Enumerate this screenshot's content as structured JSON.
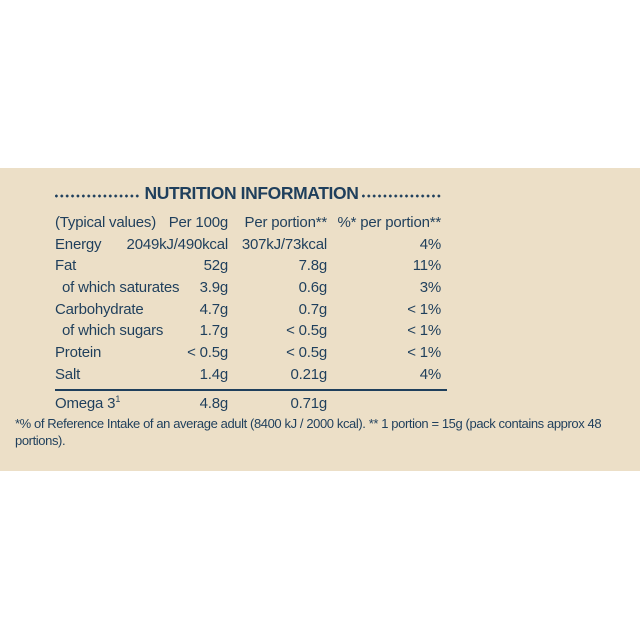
{
  "colors": {
    "page_bg": "#ffffff",
    "label_bg": "#ecdfc7",
    "ink": "#1f3f5c"
  },
  "label": {
    "title": "NUTRITION INFORMATION",
    "columns": {
      "c1": "(Typical values)",
      "c2": "Per 100g",
      "c3": "Per portion**",
      "c4": "%* per portion**"
    },
    "rows": [
      {
        "name": "Energy",
        "per_100g": "2049kJ/490kcal",
        "per_portion": "307kJ/73kcal",
        "pct_per_portion": "4%"
      },
      {
        "name": "Fat",
        "per_100g": "52g",
        "per_portion": "7.8g",
        "pct_per_portion": "11%"
      },
      {
        "name": "of which saturates",
        "per_100g": "3.9g",
        "per_portion": "0.6g",
        "pct_per_portion": "3%"
      },
      {
        "name": "Carbohydrate",
        "per_100g": "4.7g",
        "per_portion": "0.7g",
        "pct_per_portion": "< 1%"
      },
      {
        "name": "of which sugars",
        "per_100g": "1.7g",
        "per_portion": "< 0.5g",
        "pct_per_portion": "< 1%"
      },
      {
        "name": "Protein",
        "per_100g": "< 0.5g",
        "per_portion": "< 0.5g",
        "pct_per_portion": "< 1%"
      },
      {
        "name": "Salt",
        "per_100g": "1.4g",
        "per_portion": "0.21g",
        "pct_per_portion": "4%"
      }
    ],
    "omega_row": {
      "name": "Omega 3",
      "superscript": "1",
      "per_100g": "4.8g",
      "per_portion": "0.71g"
    },
    "footnote": "*% of Reference Intake of an average adult (8400 kJ / 2000 kcal). ** 1 portion = 15g (pack contains approx 48 portions)."
  }
}
